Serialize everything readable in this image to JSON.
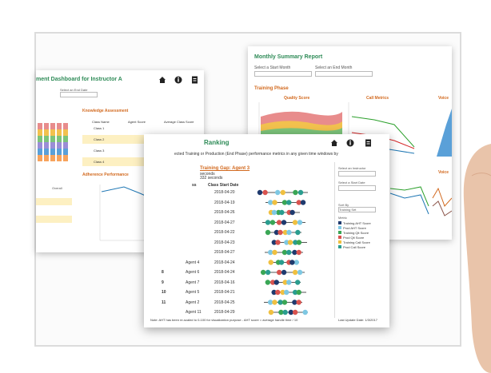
{
  "instructor_panel": {
    "title": "ment Dashboard for Instructor A",
    "end_label": "Select an End Date",
    "knowledge_title": "Knowledge Assessment",
    "columns": [
      "Class Name",
      "Agent Score",
      "Average Class Score"
    ],
    "classes": [
      "Class 1",
      "Class 2",
      "Class 3",
      "Class 4"
    ],
    "adherence_title": "Adherence Performance",
    "overall_label": "Overall"
  },
  "summary_panel": {
    "title": "Monthly Summary Report",
    "start_label": "Select a Start Month",
    "end_label": "Select an End Month",
    "section": "Training Phase",
    "charts": [
      "Quality Score",
      "Call Metrics",
      "Voice"
    ],
    "lower_chart": "Voice"
  },
  "ranking_panel": {
    "title": "Ranking",
    "subtitle": "ected Training or Production (End Phase) performance metrics in any given time windows by",
    "gap_label": "Training Gap: Agent 3",
    "seconds_lines": [
      "seconds",
      "332 seconds"
    ],
    "columns": [
      "ss",
      "Class Start Date"
    ],
    "rows": [
      {
        "rank": null,
        "agent": null,
        "date": "2018-04-20"
      },
      {
        "rank": null,
        "agent": null,
        "date": "2018-04-19"
      },
      {
        "rank": null,
        "agent": null,
        "date": "2018-04-26"
      },
      {
        "rank": null,
        "agent": null,
        "date": "2018-04-27"
      },
      {
        "rank": null,
        "agent": null,
        "date": "2018-04-22"
      },
      {
        "rank": null,
        "agent": null,
        "date": "2018-04-23"
      },
      {
        "rank": null,
        "agent": null,
        "date": "2018-04-27"
      },
      {
        "rank": null,
        "agent": "Agent 4",
        "date": "2018-04-24"
      },
      {
        "rank": "8",
        "agent": "Agent 6",
        "date": "2018-04-24"
      },
      {
        "rank": "9",
        "agent": "Agent 7",
        "date": "2018-04-16"
      },
      {
        "rank": "10",
        "agent": "Agent 5",
        "date": "2018-04-21"
      },
      {
        "rank": "11",
        "agent": "Agent 2",
        "date": "2018-04-25"
      },
      {
        "rank": null,
        "agent": "Agent 11",
        "date": "2018-04-29"
      }
    ],
    "controls": {
      "instructor_label": "Select an Instructor",
      "start_label": "Select a Start Date",
      "sort_label": "Sort By",
      "sort_value": "Training Set",
      "metric_label": "Metric"
    },
    "legend": [
      "Training AHT Score",
      "Prod AHT Score",
      "Training Qlt Score",
      "Prod Qlt Score",
      "Training Call Score",
      "Prod Call Score"
    ],
    "note": "Note: AHT has been re-scaled to 0-100 for visualization purpose - AHT score = average handle time / 10",
    "update": "Last Update Date: 1/3/2017"
  }
}
